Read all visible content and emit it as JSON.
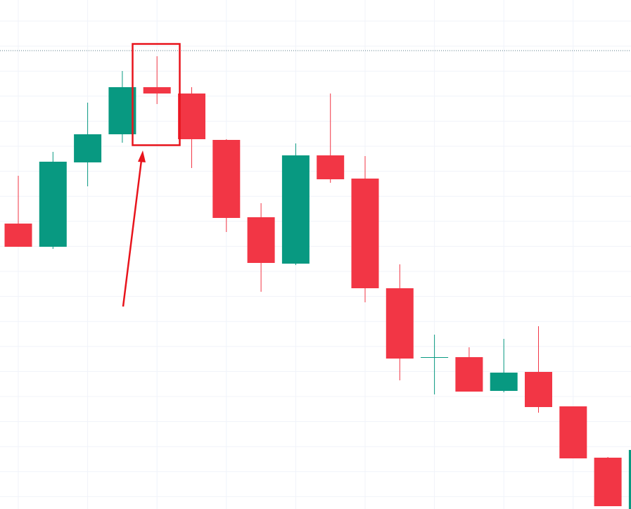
{
  "chart_data": {
    "type": "candlestick",
    "open": [
      406,
      373,
      493,
      533,
      600,
      591,
      525,
      415,
      349,
      503,
      470,
      314,
      215,
      216,
      168,
      195,
      146,
      73,
      0
    ],
    "high": [
      474,
      508,
      578,
      623,
      644,
      600,
      526,
      435,
      520,
      591,
      502,
      348,
      248,
      230,
      242,
      260,
      146,
      74,
      84
    ],
    "low": [
      373,
      370,
      459,
      521,
      576,
      485,
      394,
      309,
      347,
      464,
      294,
      183,
      163,
      167,
      166,
      137,
      72,
      4,
      0
    ],
    "close": [
      373,
      494,
      533,
      600,
      591,
      526,
      414,
      350,
      503,
      469,
      314,
      214,
      216,
      167,
      194,
      145,
      72,
      4,
      84
    ],
    "up_color": "#089981",
    "down_color": "#f23645",
    "ylim": [
      0,
      724
    ],
    "grid": true
  }
}
